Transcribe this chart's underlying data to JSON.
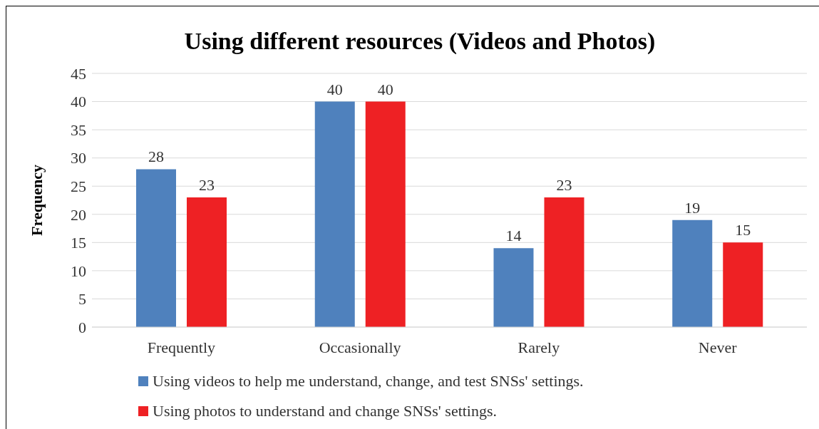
{
  "chart_data": {
    "type": "bar",
    "title": "Using different resources  (Videos and Photos)",
    "ylabel": "Frequency",
    "categories": [
      "Frequently",
      "Occasionally",
      "Rarely",
      "Never"
    ],
    "series": [
      {
        "name": "Using videos to help me understand, change, and test SNSs' settings.",
        "color": "#4f81bd",
        "values": [
          28,
          40,
          14,
          19
        ]
      },
      {
        "name": "Using photos to understand and change SNSs' settings.",
        "color": "#ee2124",
        "values": [
          23,
          40,
          23,
          15
        ]
      }
    ],
    "ylim": [
      0,
      45
    ],
    "yticks": [
      0,
      5,
      10,
      15,
      20,
      25,
      30,
      35,
      40,
      45
    ],
    "grid": "y",
    "legend": "bottom",
    "data_labels": true
  }
}
